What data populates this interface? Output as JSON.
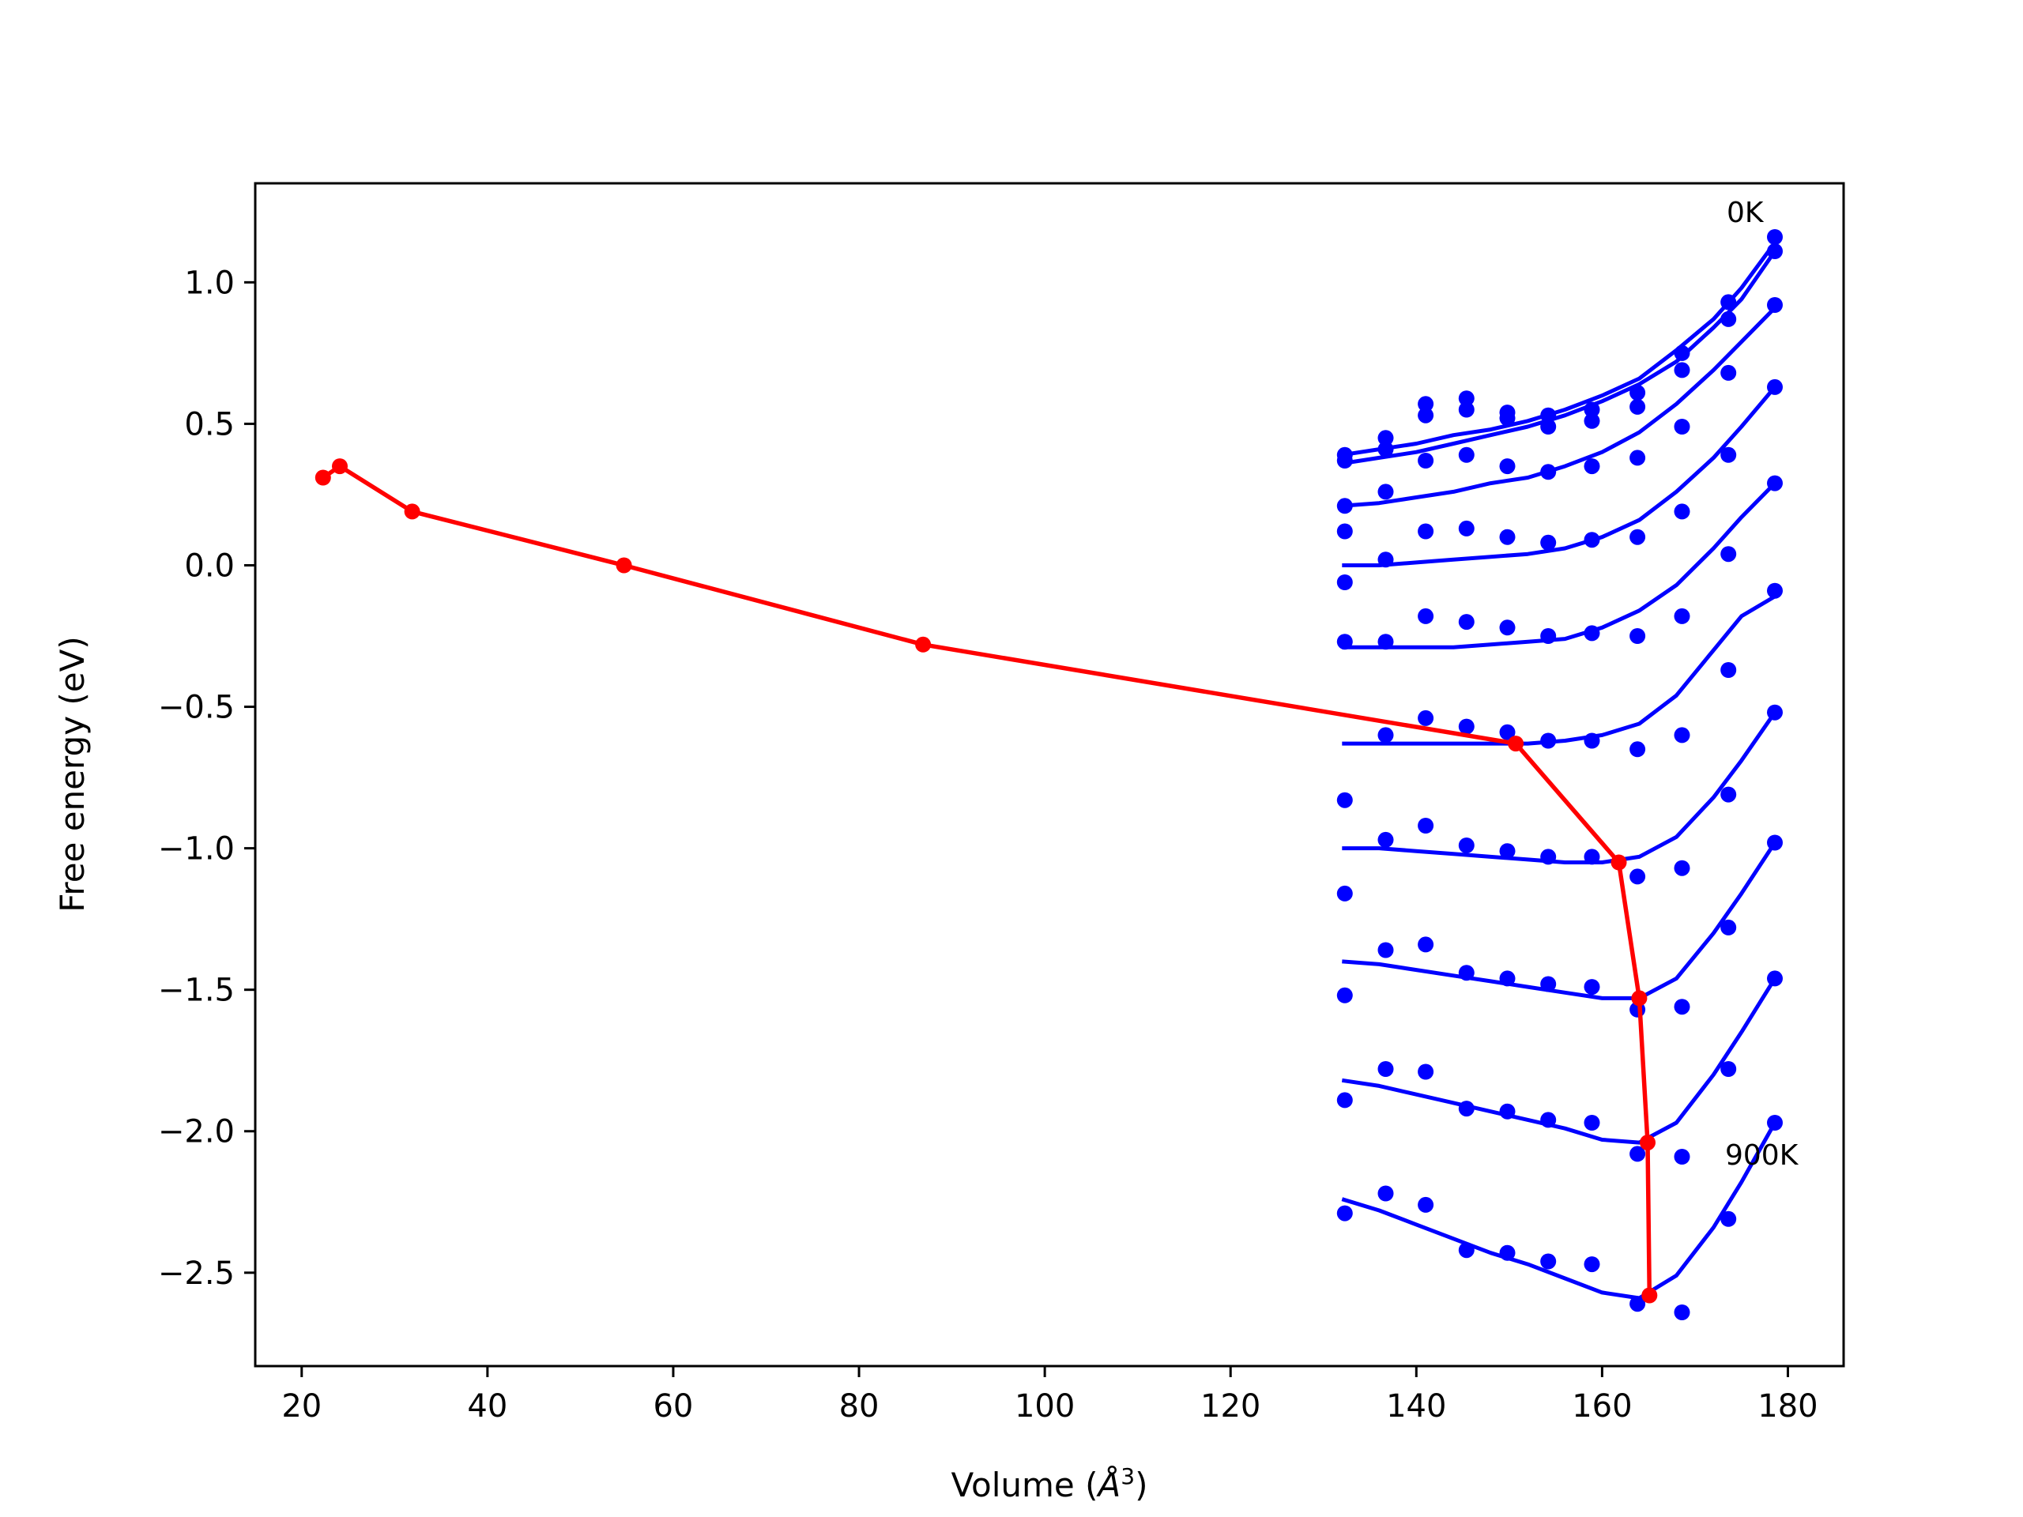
{
  "chart_data": {
    "type": "line",
    "title": "",
    "xlabel": "Volume (",
    "xlabel_symbol": "Å",
    "xlabel_sup": "3",
    "xlabel_close": ")",
    "ylabel": "Free energy (eV)",
    "xlim": [
      15,
      186
    ],
    "ylim": [
      -2.83,
      1.35
    ],
    "xticks": [
      20,
      40,
      60,
      80,
      100,
      120,
      140,
      160,
      180
    ],
    "xtick_labels": [
      "20",
      "40",
      "60",
      "80",
      "100",
      "120",
      "140",
      "160",
      "180"
    ],
    "yticks": [
      1.0,
      0.5,
      0.0,
      -0.5,
      -1.0,
      -1.5,
      -2.0,
      -2.5
    ],
    "ytick_labels": [
      "1.0",
      "0.5",
      "0.0",
      "−0.5",
      "−1.0",
      "−1.5",
      "−2.0",
      "−2.5"
    ],
    "grid": false,
    "annotations": [
      {
        "text": "0K",
        "x": 173.5,
        "y": 1.2
      },
      {
        "text": "900K",
        "x": 173.3,
        "y": -2.13
      }
    ],
    "colors": {
      "isotherms": "#0000ff",
      "minimum_path": "#ff0000",
      "axes": "#000000"
    },
    "volumes": [
      132.3,
      136.7,
      141.0,
      145.4,
      149.8,
      154.2,
      158.9,
      163.8,
      168.6,
      173.6,
      178.6
    ],
    "isotherms": [
      {
        "points": [
          0.39,
          0.45,
          0.57,
          0.59,
          0.54,
          0.53,
          0.55,
          0.61,
          0.75,
          0.93,
          1.16
        ],
        "fit": [
          [
            132,
            0.39
          ],
          [
            136,
            0.41
          ],
          [
            140,
            0.43
          ],
          [
            144,
            0.46
          ],
          [
            148,
            0.48
          ],
          [
            152,
            0.51
          ],
          [
            156,
            0.55
          ],
          [
            160,
            0.6
          ],
          [
            164,
            0.66
          ],
          [
            168,
            0.76
          ],
          [
            172,
            0.87
          ],
          [
            175,
            0.98
          ],
          [
            178.6,
            1.14
          ]
        ]
      },
      {
        "points": [
          0.37,
          0.41,
          0.53,
          0.55,
          0.52,
          0.49,
          0.51,
          0.56,
          0.69,
          0.87,
          1.11
        ],
        "fit": [
          [
            132,
            0.36
          ],
          [
            136,
            0.38
          ],
          [
            140,
            0.4
          ],
          [
            144,
            0.43
          ],
          [
            148,
            0.46
          ],
          [
            152,
            0.49
          ],
          [
            156,
            0.53
          ],
          [
            160,
            0.58
          ],
          [
            164,
            0.64
          ],
          [
            168,
            0.72
          ],
          [
            172,
            0.84
          ],
          [
            175,
            0.94
          ],
          [
            178.6,
            1.11
          ]
        ]
      },
      {
        "points": [
          0.21,
          0.26,
          0.37,
          0.39,
          0.35,
          0.33,
          0.35,
          0.38,
          0.49,
          0.68,
          0.92
        ],
        "fit": [
          [
            132,
            0.21
          ],
          [
            136,
            0.22
          ],
          [
            140,
            0.24
          ],
          [
            144,
            0.26
          ],
          [
            148,
            0.29
          ],
          [
            152,
            0.31
          ],
          [
            156,
            0.35
          ],
          [
            160,
            0.4
          ],
          [
            164,
            0.47
          ],
          [
            168,
            0.57
          ],
          [
            172,
            0.69
          ],
          [
            175,
            0.79
          ],
          [
            178.6,
            0.91
          ]
        ]
      },
      {
        "points": [
          0.12,
          0.02,
          0.12,
          0.13,
          0.1,
          0.08,
          0.09,
          0.1,
          0.19,
          0.39,
          0.63
        ],
        "fit": [
          [
            132,
            0.0
          ],
          [
            136,
            0.0
          ],
          [
            140,
            0.01
          ],
          [
            144,
            0.02
          ],
          [
            148,
            0.03
          ],
          [
            152,
            0.04
          ],
          [
            156,
            0.06
          ],
          [
            160,
            0.1
          ],
          [
            164,
            0.16
          ],
          [
            168,
            0.26
          ],
          [
            172,
            0.38
          ],
          [
            175,
            0.49
          ],
          [
            178.6,
            0.63
          ]
        ]
      },
      {
        "points": [
          -0.06,
          -0.27,
          -0.18,
          -0.2,
          -0.22,
          -0.25,
          -0.24,
          -0.25,
          -0.18,
          0.04,
          0.29
        ],
        "fit": [
          [
            132,
            -0.29
          ],
          [
            136,
            -0.29
          ],
          [
            140,
            -0.29
          ],
          [
            144,
            -0.29
          ],
          [
            148,
            -0.28
          ],
          [
            152,
            -0.27
          ],
          [
            156,
            -0.26
          ],
          [
            160,
            -0.22
          ],
          [
            164,
            -0.16
          ],
          [
            168,
            -0.07
          ],
          [
            172,
            0.06
          ],
          [
            175,
            0.17
          ],
          [
            178.6,
            0.29
          ]
        ]
      },
      {
        "points": [
          -0.27,
          -0.6,
          -0.54,
          -0.57,
          -0.59,
          -0.62,
          -0.62,
          -0.65,
          -0.6,
          -0.37,
          -0.09
        ],
        "fit": [
          [
            132,
            -0.63
          ],
          [
            136,
            -0.63
          ],
          [
            140,
            -0.63
          ],
          [
            144,
            -0.63
          ],
          [
            148,
            -0.63
          ],
          [
            152,
            -0.63
          ],
          [
            156,
            -0.62
          ],
          [
            160,
            -0.6
          ],
          [
            164,
            -0.56
          ],
          [
            168,
            -0.46
          ],
          [
            172,
            -0.3
          ],
          [
            175,
            -0.18
          ],
          [
            178.6,
            -0.11
          ]
        ]
      },
      {
        "points": [
          -0.83,
          -0.97,
          -0.92,
          -0.99,
          -1.01,
          -1.03,
          -1.03,
          -1.1,
          -1.07,
          -0.81,
          -0.52
        ],
        "fit": [
          [
            132,
            -1.0
          ],
          [
            136,
            -1.0
          ],
          [
            140,
            -1.01
          ],
          [
            144,
            -1.02
          ],
          [
            148,
            -1.03
          ],
          [
            152,
            -1.04
          ],
          [
            156,
            -1.05
          ],
          [
            160,
            -1.05
          ],
          [
            164,
            -1.03
          ],
          [
            168,
            -0.96
          ],
          [
            172,
            -0.82
          ],
          [
            175,
            -0.69
          ],
          [
            178.6,
            -0.52
          ]
        ]
      },
      {
        "points": [
          -1.16,
          -1.36,
          -1.34,
          -1.44,
          -1.46,
          -1.48,
          -1.49,
          -1.57,
          -1.56,
          -1.28,
          -0.98
        ],
        "fit": [
          [
            132,
            -1.4
          ],
          [
            136,
            -1.41
          ],
          [
            140,
            -1.43
          ],
          [
            144,
            -1.45
          ],
          [
            148,
            -1.47
          ],
          [
            152,
            -1.49
          ],
          [
            156,
            -1.51
          ],
          [
            160,
            -1.53
          ],
          [
            164,
            -1.53
          ],
          [
            168,
            -1.46
          ],
          [
            172,
            -1.3
          ],
          [
            175,
            -1.16
          ],
          [
            178.6,
            -0.98
          ]
        ]
      },
      {
        "points": [
          -1.52,
          -1.78,
          -1.79,
          -1.92,
          -1.93,
          -1.96,
          -1.97,
          -2.08,
          -2.09,
          -1.78,
          -1.46
        ],
        "fit": [
          [
            132,
            -1.82
          ],
          [
            136,
            -1.84
          ],
          [
            140,
            -1.87
          ],
          [
            144,
            -1.9
          ],
          [
            148,
            -1.93
          ],
          [
            152,
            -1.96
          ],
          [
            156,
            -1.99
          ],
          [
            160,
            -2.03
          ],
          [
            164,
            -2.04
          ],
          [
            168,
            -1.97
          ],
          [
            172,
            -1.8
          ],
          [
            175,
            -1.65
          ],
          [
            178.6,
            -1.46
          ]
        ]
      },
      {
        "points": [
          -1.89,
          -2.22,
          -2.26,
          -2.42,
          -2.43,
          -2.46,
          -2.47,
          -2.61,
          -2.64,
          -2.31,
          -1.97
        ],
        "fit": [
          [
            132,
            -2.24
          ],
          [
            136,
            -2.28
          ],
          [
            140,
            -2.33
          ],
          [
            144,
            -2.38
          ],
          [
            148,
            -2.43
          ],
          [
            152,
            -2.47
          ],
          [
            156,
            -2.52
          ],
          [
            160,
            -2.57
          ],
          [
            164,
            -2.59
          ],
          [
            168,
            -2.51
          ],
          [
            172,
            -2.34
          ],
          [
            175,
            -2.18
          ],
          [
            178.6,
            -1.97
          ]
        ]
      },
      {
        "points": [
          -2.29
        ],
        "fit": []
      }
    ],
    "minimum_path": {
      "name": "",
      "x": [
        22.3,
        24.1,
        31.9,
        54.7,
        86.9,
        150.7,
        161.8,
        164.0,
        164.9,
        165.1
      ],
      "y": [
        0.31,
        0.35,
        0.19,
        0.0,
        -0.28,
        -0.63,
        -1.05,
        -1.53,
        -2.04,
        -2.58
      ]
    }
  }
}
